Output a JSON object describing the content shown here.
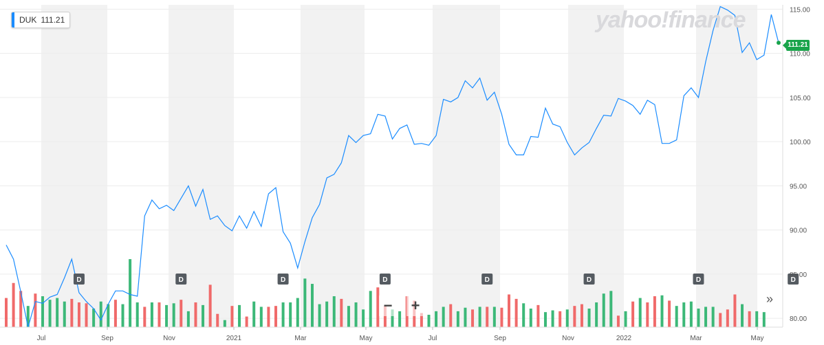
{
  "ticker": {
    "symbol": "DUK",
    "price": "111.21"
  },
  "logo": "yahoo!finance",
  "price_tag": "111.21",
  "controls": {
    "zoom_out": "−",
    "zoom_in": "+",
    "more": "»"
  },
  "colors": {
    "line": "#1a8cff",
    "up": "#3cb878",
    "down": "#f06a6a",
    "band": "#f2f2f2",
    "grid": "#ececec",
    "badge": "#1aa44b",
    "dividend": "#555b61"
  },
  "chart_data": {
    "type": "line",
    "title": "",
    "xlabel": "",
    "ylabel": "",
    "ylim": [
      79,
      115.5
    ],
    "y_ticks": [
      80,
      85,
      90,
      95,
      100,
      105,
      110,
      115
    ],
    "x_ticks": [
      "Jul",
      "Sep",
      "Nov",
      "2021",
      "Mar",
      "May",
      "Jul",
      "Sep",
      "Nov",
      "2022",
      "Mar",
      "May"
    ],
    "grid": true,
    "series": [
      {
        "values": [
          88.3,
          86.7,
          83.0,
          79.0,
          81.9,
          81.7,
          82.4,
          82.7,
          84.6,
          86.7,
          82.9,
          81.9,
          81.1,
          79.8,
          81.6,
          83.1,
          83.1,
          82.7,
          82.5,
          91.6,
          93.4,
          92.4,
          92.8,
          92.2,
          93.6,
          95.0,
          92.7,
          94.6,
          91.2,
          91.6,
          90.5,
          89.9,
          91.6,
          90.2,
          92.1,
          90.4,
          94.1,
          94.8,
          89.8,
          88.5,
          85.7,
          88.7,
          91.4,
          92.9,
          95.9,
          96.3,
          97.6,
          100.7,
          99.9,
          100.7,
          100.9,
          103.1,
          102.9,
          100.3,
          101.5,
          101.9,
          99.7,
          99.8,
          99.6,
          100.7,
          104.8,
          104.5,
          105.0,
          106.9,
          106.1,
          107.2,
          104.7,
          105.6,
          103.1,
          99.7,
          98.5,
          98.5,
          100.6,
          100.5,
          103.8,
          102.0,
          101.7,
          99.9,
          98.5,
          99.3,
          99.9,
          101.5,
          103.0,
          102.9,
          104.9,
          104.6,
          104.1,
          103.1,
          104.7,
          104.2,
          99.8,
          99.8,
          100.2,
          105.2,
          106.1,
          105.0,
          109.1,
          112.6,
          115.3,
          114.9,
          114.3,
          110.1,
          111.2,
          109.3,
          109.8,
          114.4,
          111.2
        ]
      }
    ],
    "volume": [
      {
        "v": 82.3,
        "up": false
      },
      {
        "v": 84.0,
        "up": false
      },
      {
        "v": 83.1,
        "up": false
      },
      {
        "v": 81.4,
        "up": true
      },
      {
        "v": 82.8,
        "up": false
      },
      {
        "v": 82.5,
        "up": true
      },
      {
        "v": 82.1,
        "up": true
      },
      {
        "v": 82.3,
        "up": true
      },
      {
        "v": 81.9,
        "up": true
      },
      {
        "v": 82.2,
        "up": false
      },
      {
        "v": 81.8,
        "up": false
      },
      {
        "v": 81.7,
        "up": false
      },
      {
        "v": 81.1,
        "up": true
      },
      {
        "v": 81.9,
        "up": true
      },
      {
        "v": 81.6,
        "up": true
      },
      {
        "v": 82.1,
        "up": false
      },
      {
        "v": 81.6,
        "up": true
      },
      {
        "v": 86.7,
        "up": true
      },
      {
        "v": 81.8,
        "up": true
      },
      {
        "v": 81.3,
        "up": false
      },
      {
        "v": 81.8,
        "up": true
      },
      {
        "v": 81.8,
        "up": false
      },
      {
        "v": 81.5,
        "up": true
      },
      {
        "v": 81.7,
        "up": true
      },
      {
        "v": 82.1,
        "up": false
      },
      {
        "v": 80.8,
        "up": true
      },
      {
        "v": 81.8,
        "up": false
      },
      {
        "v": 81.5,
        "up": true
      },
      {
        "v": 83.8,
        "up": false
      },
      {
        "v": 80.5,
        "up": false
      },
      {
        "v": 79.8,
        "up": true
      },
      {
        "v": 81.4,
        "up": false
      },
      {
        "v": 81.5,
        "up": true
      },
      {
        "v": 80.2,
        "up": false
      },
      {
        "v": 81.9,
        "up": true
      },
      {
        "v": 81.3,
        "up": true
      },
      {
        "v": 81.3,
        "up": false
      },
      {
        "v": 81.4,
        "up": false
      },
      {
        "v": 81.8,
        "up": true
      },
      {
        "v": 81.8,
        "up": true
      },
      {
        "v": 82.3,
        "up": true
      },
      {
        "v": 84.5,
        "up": true
      },
      {
        "v": 83.9,
        "up": true
      },
      {
        "v": 81.6,
        "up": true
      },
      {
        "v": 81.9,
        "up": true
      },
      {
        "v": 82.5,
        "up": true
      },
      {
        "v": 82.2,
        "up": false
      },
      {
        "v": 81.4,
        "up": true
      },
      {
        "v": 81.8,
        "up": true
      },
      {
        "v": 81.0,
        "up": true
      },
      {
        "v": 83.1,
        "up": true
      },
      {
        "v": 83.5,
        "up": false
      },
      {
        "v": 81.4,
        "up": false
      },
      {
        "v": 81.0,
        "up": true
      },
      {
        "v": 80.8,
        "up": true
      },
      {
        "v": 82.5,
        "up": false
      },
      {
        "v": 82.0,
        "up": false
      },
      {
        "v": 80.6,
        "up": false
      },
      {
        "v": 80.4,
        "up": true
      },
      {
        "v": 80.8,
        "up": true
      },
      {
        "v": 81.3,
        "up": true
      },
      {
        "v": 81.6,
        "up": false
      },
      {
        "v": 80.8,
        "up": true
      },
      {
        "v": 81.2,
        "up": true
      },
      {
        "v": 81.0,
        "up": false
      },
      {
        "v": 81.3,
        "up": true
      },
      {
        "v": 81.3,
        "up": false
      },
      {
        "v": 81.3,
        "up": true
      },
      {
        "v": 81.2,
        "up": false
      },
      {
        "v": 82.7,
        "up": false
      },
      {
        "v": 82.2,
        "up": false
      },
      {
        "v": 81.7,
        "up": true
      },
      {
        "v": 81.1,
        "up": true
      },
      {
        "v": 81.5,
        "up": false
      },
      {
        "v": 80.7,
        "up": true
      },
      {
        "v": 80.9,
        "up": true
      },
      {
        "v": 80.8,
        "up": false
      },
      {
        "v": 81.0,
        "up": true
      },
      {
        "v": 81.4,
        "up": false
      },
      {
        "v": 81.6,
        "up": false
      },
      {
        "v": 81.1,
        "up": true
      },
      {
        "v": 81.8,
        "up": true
      },
      {
        "v": 82.8,
        "up": true
      },
      {
        "v": 83.1,
        "up": true
      },
      {
        "v": 80.3,
        "up": false
      },
      {
        "v": 80.8,
        "up": true
      },
      {
        "v": 81.9,
        "up": false
      },
      {
        "v": 82.3,
        "up": true
      },
      {
        "v": 81.8,
        "up": false
      },
      {
        "v": 82.5,
        "up": false
      },
      {
        "v": 82.6,
        "up": true
      },
      {
        "v": 82.0,
        "up": false
      },
      {
        "v": 81.4,
        "up": true
      },
      {
        "v": 81.8,
        "up": true
      },
      {
        "v": 81.9,
        "up": true
      },
      {
        "v": 81.1,
        "up": true
      },
      {
        "v": 81.3,
        "up": true
      },
      {
        "v": 81.3,
        "up": true
      },
      {
        "v": 80.6,
        "up": false
      },
      {
        "v": 81.0,
        "up": false
      },
      {
        "v": 82.7,
        "up": false
      },
      {
        "v": 81.6,
        "up": true
      },
      {
        "v": 80.8,
        "up": false
      },
      {
        "v": 80.8,
        "up": true
      },
      {
        "v": 80.7,
        "up": true
      }
    ],
    "dividends": [
      {
        "label": "D",
        "index": 10
      },
      {
        "label": "D",
        "index": 24
      },
      {
        "label": "D",
        "index": 38
      },
      {
        "label": "D",
        "index": 52
      },
      {
        "label": "D",
        "index": 66
      },
      {
        "label": "D",
        "index": 80
      },
      {
        "label": "D",
        "index": 95
      },
      {
        "label": "D",
        "index": 108
      }
    ]
  }
}
